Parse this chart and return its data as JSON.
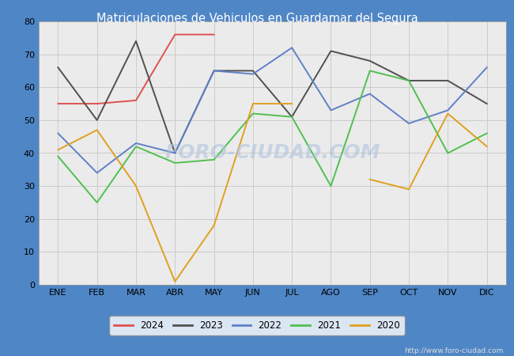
{
  "title": "Matriculaciones de Vehiculos en Guardamar del Segura",
  "title_color": "#ffffff",
  "title_bg_color": "#4f86c6",
  "months": [
    "ENE",
    "FEB",
    "MAR",
    "ABR",
    "MAY",
    "JUN",
    "JUL",
    "AGO",
    "SEP",
    "OCT",
    "NOV",
    "DIC"
  ],
  "series": {
    "2024": {
      "color": "#e05050",
      "data": [
        55,
        55,
        56,
        76,
        76,
        null,
        null,
        null,
        null,
        null,
        null,
        null
      ]
    },
    "2023": {
      "color": "#505050",
      "data": [
        66,
        50,
        74,
        40,
        65,
        65,
        51,
        71,
        68,
        62,
        62,
        55
      ]
    },
    "2022": {
      "color": "#6080c8",
      "data": [
        46,
        34,
        43,
        40,
        65,
        64,
        72,
        53,
        58,
        49,
        53,
        66
      ]
    },
    "2021": {
      "color": "#50c050",
      "data": [
        39,
        25,
        42,
        37,
        38,
        52,
        51,
        30,
        65,
        62,
        40,
        46
      ]
    },
    "2020": {
      "color": "#e0a020",
      "data": [
        41,
        47,
        30,
        1,
        18,
        55,
        55,
        null,
        32,
        29,
        52,
        42
      ]
    }
  },
  "ylim": [
    0,
    80
  ],
  "yticks": [
    0,
    10,
    20,
    30,
    40,
    50,
    60,
    70,
    80
  ],
  "grid_color": "#cccccc",
  "plot_bg_color": "#ebebeb",
  "footer_url": "http://www.foro-ciudad.com",
  "legend_order": [
    "2024",
    "2023",
    "2022",
    "2021",
    "2020"
  ],
  "watermark_color": "#b0c4de",
  "watermark_text": "FORO-CIUDAD.COM"
}
